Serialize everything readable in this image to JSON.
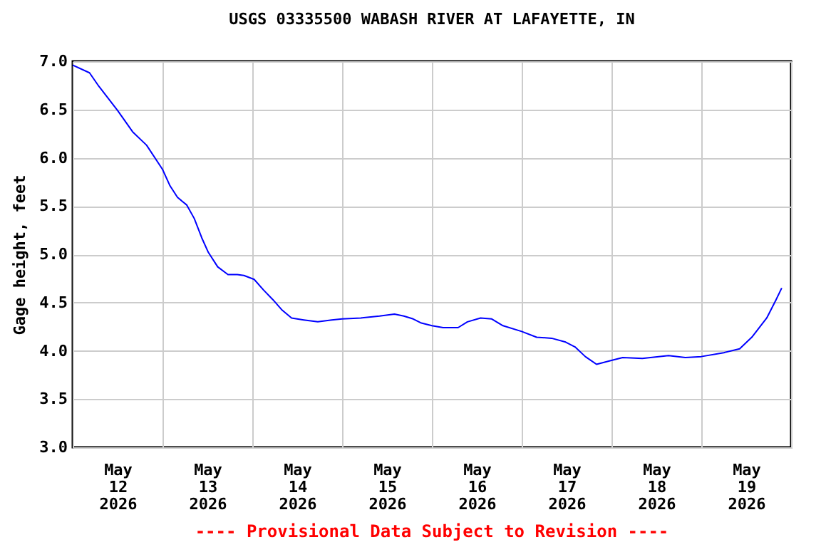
{
  "chart_data": {
    "type": "line",
    "title": "USGS 03335500 WABASH RIVER AT LAFAYETTE, IN",
    "ylabel": "Gage height, feet",
    "annotations": [
      "---- Provisional Data Subject to Revision ----"
    ],
    "x": [
      "2026-05-12T00:00",
      "2026-05-12T04:30",
      "2026-05-12T07:00",
      "2026-05-12T12:00",
      "2026-05-12T16:00",
      "2026-05-12T19:45",
      "2026-05-13T00:00",
      "2026-05-13T02:00",
      "2026-05-13T04:00",
      "2026-05-13T06:30",
      "2026-05-13T08:30",
      "2026-05-13T10:30",
      "2026-05-13T12:15",
      "2026-05-13T14:45",
      "2026-05-13T17:30",
      "2026-05-13T20:00",
      "2026-05-13T21:45",
      "2026-05-14T00:30",
      "2026-05-14T03:00",
      "2026-05-14T05:30",
      "2026-05-14T08:00",
      "2026-05-14T10:30",
      "2026-05-14T13:45",
      "2026-05-14T17:30",
      "2026-05-14T21:15",
      "2026-05-15T00:00",
      "2026-05-15T05:00",
      "2026-05-15T10:00",
      "2026-05-15T14:00",
      "2026-05-15T16:30",
      "2026-05-15T19:00",
      "2026-05-15T21:00",
      "2026-05-16T00:00",
      "2026-05-16T03:00",
      "2026-05-16T07:00",
      "2026-05-16T09:30",
      "2026-05-16T13:00",
      "2026-05-16T16:00",
      "2026-05-16T19:00",
      "2026-05-17T00:00",
      "2026-05-17T04:00",
      "2026-05-17T08:00",
      "2026-05-17T11:45",
      "2026-05-17T14:15",
      "2026-05-17T17:00",
      "2026-05-17T20:00",
      "2026-05-18T00:00",
      "2026-05-18T03:00",
      "2026-05-18T08:15",
      "2026-05-18T15:15",
      "2026-05-18T19:45",
      "2026-05-19T00:00",
      "2026-05-19T06:00",
      "2026-05-19T10:15",
      "2026-05-19T13:30",
      "2026-05-19T17:30",
      "2026-05-19T20:00",
      "2026-05-19T21:30"
    ],
    "series": [
      {
        "color": "#0000ff",
        "values": [
          6.96,
          6.88,
          6.74,
          6.49,
          6.27,
          6.13,
          5.88,
          5.71,
          5.59,
          5.51,
          5.37,
          5.17,
          5.02,
          4.87,
          4.79,
          4.79,
          4.78,
          4.74,
          4.63,
          4.53,
          4.42,
          4.34,
          4.32,
          4.3,
          4.32,
          4.33,
          4.34,
          4.36,
          4.38,
          4.36,
          4.33,
          4.29,
          4.26,
          4.24,
          4.24,
          4.3,
          4.34,
          4.33,
          4.26,
          4.2,
          4.14,
          4.13,
          4.09,
          4.04,
          3.94,
          3.86,
          3.9,
          3.93,
          3.92,
          3.95,
          3.93,
          3.94,
          3.98,
          4.02,
          4.14,
          4.34,
          4.53,
          4.65
        ]
      }
    ],
    "xlim": [
      "2026-05-12T00:00",
      "2026-05-20T00:00"
    ],
    "xticks": [
      {
        "value": "2026-05-12T00:00",
        "label": null
      },
      {
        "value": "2026-05-12T12:00",
        "label": "May 12 2026"
      },
      {
        "value": "2026-05-13T00:00",
        "label": null
      },
      {
        "value": "2026-05-13T12:00",
        "label": "May 13 2026"
      },
      {
        "value": "2026-05-14T00:00",
        "label": null
      },
      {
        "value": "2026-05-14T12:00",
        "label": "May 14 2026"
      },
      {
        "value": "2026-05-15T00:00",
        "label": null
      },
      {
        "value": "2026-05-15T12:00",
        "label": "May 15 2026"
      },
      {
        "value": "2026-05-16T00:00",
        "label": null
      },
      {
        "value": "2026-05-16T12:00",
        "label": "May 16 2026"
      },
      {
        "value": "2026-05-17T00:00",
        "label": null
      },
      {
        "value": "2026-05-17T12:00",
        "label": "May 17 2026"
      },
      {
        "value": "2026-05-18T00:00",
        "label": null
      },
      {
        "value": "2026-05-18T12:00",
        "label": "May 18 2026"
      },
      {
        "value": "2026-05-19T00:00",
        "label": null
      },
      {
        "value": "2026-05-19T12:00",
        "label": "May 19 2026"
      },
      {
        "value": "2026-05-20T00:00",
        "label": null
      }
    ],
    "ylim": [
      3,
      7
    ],
    "yticks": [
      {
        "value": 3,
        "label": "3.0"
      },
      {
        "value": 3.5,
        "label": "3.5"
      },
      {
        "value": 4,
        "label": "4.0"
      },
      {
        "value": 4.5,
        "label": "4.5"
      },
      {
        "value": 5,
        "label": "5.0"
      },
      {
        "value": 5.5,
        "label": "5.5"
      },
      {
        "value": 6,
        "label": "6.0"
      },
      {
        "value": 6.5,
        "label": "6.5"
      },
      {
        "value": 7,
        "label": "7.0"
      }
    ],
    "grid": true,
    "legend": false,
    "marker": "none",
    "line_style": "solid"
  }
}
